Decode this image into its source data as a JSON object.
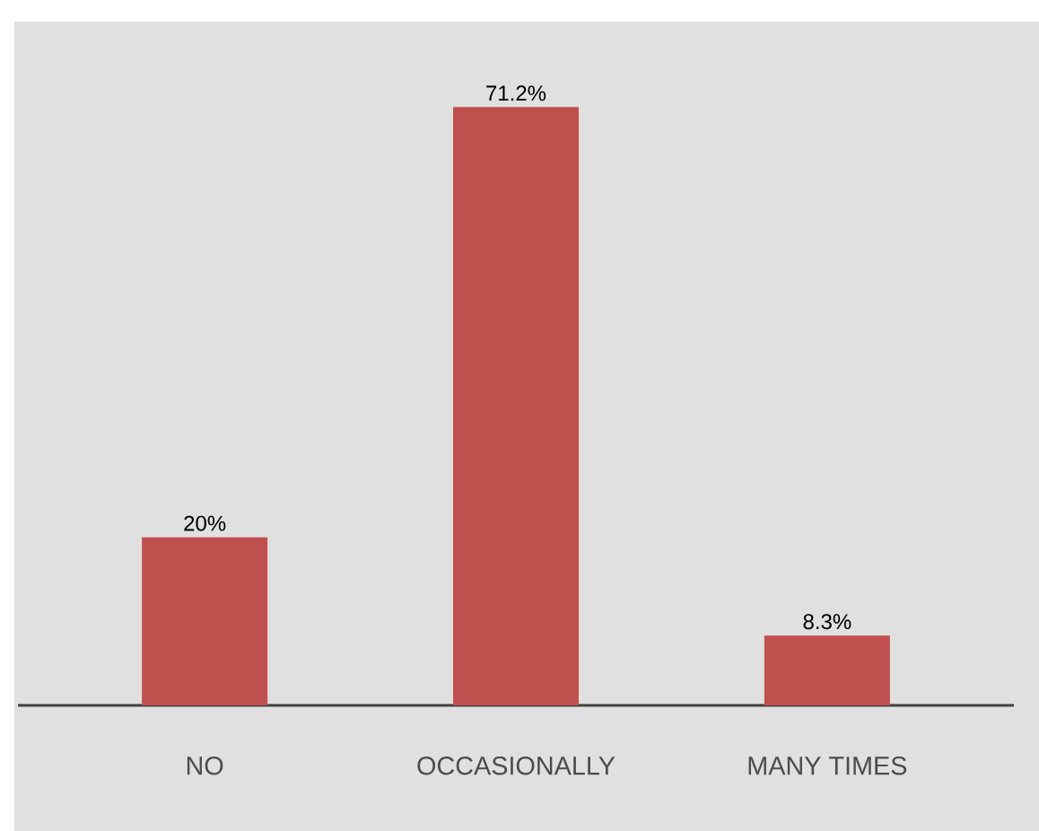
{
  "chart_data": {
    "type": "bar",
    "categories": [
      "NO",
      "OCCASIONALLY",
      "MANY TIMES"
    ],
    "values": [
      20,
      71.2,
      8.3
    ],
    "value_labels": [
      "20%",
      "71.2%",
      "8.3%"
    ],
    "color": "#c0504d"
  }
}
